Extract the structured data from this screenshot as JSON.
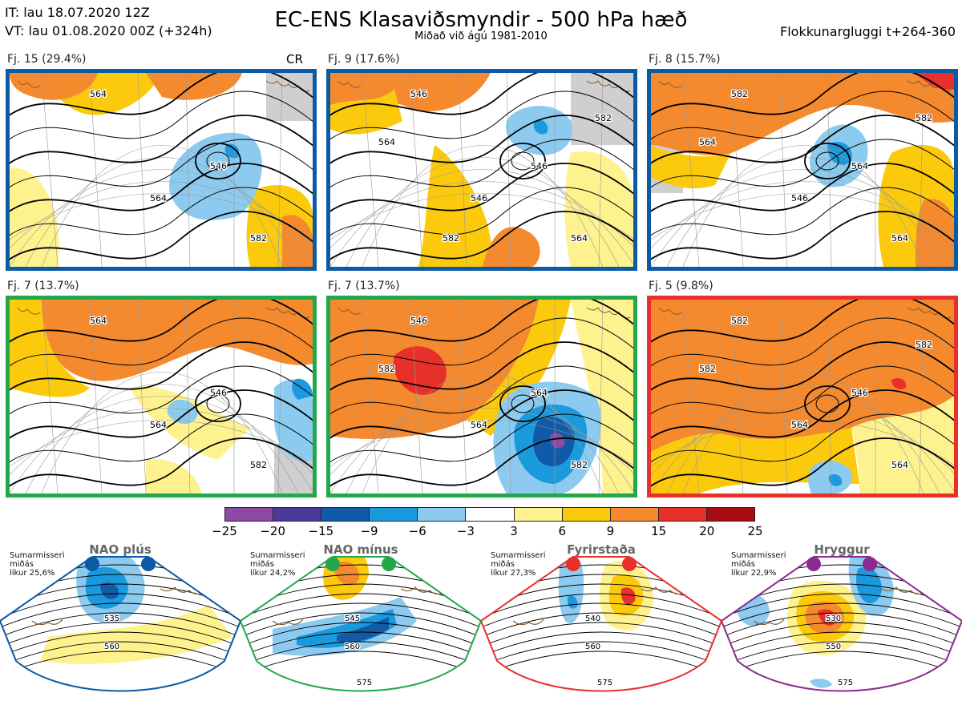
{
  "header": {
    "it": "IT: lau 18.07.2020 12Z",
    "vt": "VT: lau 01.08.2020 00Z  (+324h)",
    "title": "EC-ENS Klasaviðsmyndir - 500 hPa hæð",
    "subtitle": "Miðað við ágú 1981-2010",
    "window": "Flokkunargluggi t+264-360"
  },
  "colors": {
    "m25": "#8e49a4",
    "m20": "#4b3a9a",
    "m15": "#115aa8",
    "m9": "#1b99dd",
    "m6": "#8ccbef",
    "zero": "#ffffff",
    "p3": "#fef28f",
    "p6": "#fbca0d",
    "p9": "#f4892d",
    "p15": "#e8302b",
    "p20": "#a70c13",
    "land": "#cfcfcf",
    "coast": "#8a5a2b",
    "blue": "#0b5aa4",
    "green": "#22a84b",
    "red": "#e8302b",
    "purple": "#8b2a93"
  },
  "panels": [
    {
      "label": "Fj. 15 (29.4%)",
      "tag": "CR",
      "border": "blue",
      "contours": [
        "564",
        "546",
        "564",
        "582"
      ]
    },
    {
      "label": "Fj. 9 (17.6%)",
      "tag": "",
      "border": "blue",
      "contours": [
        "546",
        "546",
        "546",
        "564",
        "564",
        "582",
        "582"
      ]
    },
    {
      "label": "Fj. 8 (15.7%)",
      "tag": "",
      "border": "blue",
      "contours": [
        "582",
        "564",
        "546",
        "564",
        "564",
        "582"
      ]
    },
    {
      "label": "Fj. 7 (13.7%)",
      "tag": "",
      "border": "green",
      "contours": [
        "564",
        "546",
        "564",
        "582"
      ]
    },
    {
      "label": "Fj. 7 (13.7%)",
      "tag": "",
      "border": "green",
      "contours": [
        "546",
        "564",
        "564",
        "582",
        "582"
      ]
    },
    {
      "label": "Fj. 5 (9.8%)",
      "tag": "",
      "border": "red",
      "contours": [
        "582",
        "546",
        "564",
        "564",
        "582",
        "582"
      ]
    }
  ],
  "colorbar": {
    "segments": [
      "m25",
      "m20",
      "m15",
      "m9",
      "m6",
      "zero",
      "p3",
      "p6",
      "p9",
      "p15",
      "p20"
    ],
    "ticks": [
      "−25",
      "−20",
      "−15",
      "−9",
      "−6",
      "−3",
      "3",
      "6",
      "9",
      "15",
      "20",
      "25"
    ]
  },
  "regimes": [
    {
      "name": "NAO plús",
      "dot": "blue",
      "frame": "blue",
      "note": [
        "Sumarmisseri",
        "miðás",
        "líkur 25,6%"
      ],
      "contours": [
        "535",
        "560"
      ]
    },
    {
      "name": "NAO mínus",
      "dot": "green",
      "frame": "green",
      "note": [
        "Sumarmisseri",
        "miðás",
        "líkur 24,2%"
      ],
      "contours": [
        "545",
        "560",
        "575"
      ]
    },
    {
      "name": "Fyrirstaða",
      "dot": "red",
      "frame": "red",
      "note": [
        "Sumarmisseri",
        "miðás",
        "líkur 27,3%"
      ],
      "contours": [
        "540",
        "560",
        "575"
      ]
    },
    {
      "name": "Hryggur",
      "dot": "purple",
      "frame": "purple",
      "note": [
        "Sumarmisseri",
        "miðás",
        "líkur 22,9%"
      ],
      "contours": [
        "530",
        "550",
        "575"
      ]
    }
  ]
}
